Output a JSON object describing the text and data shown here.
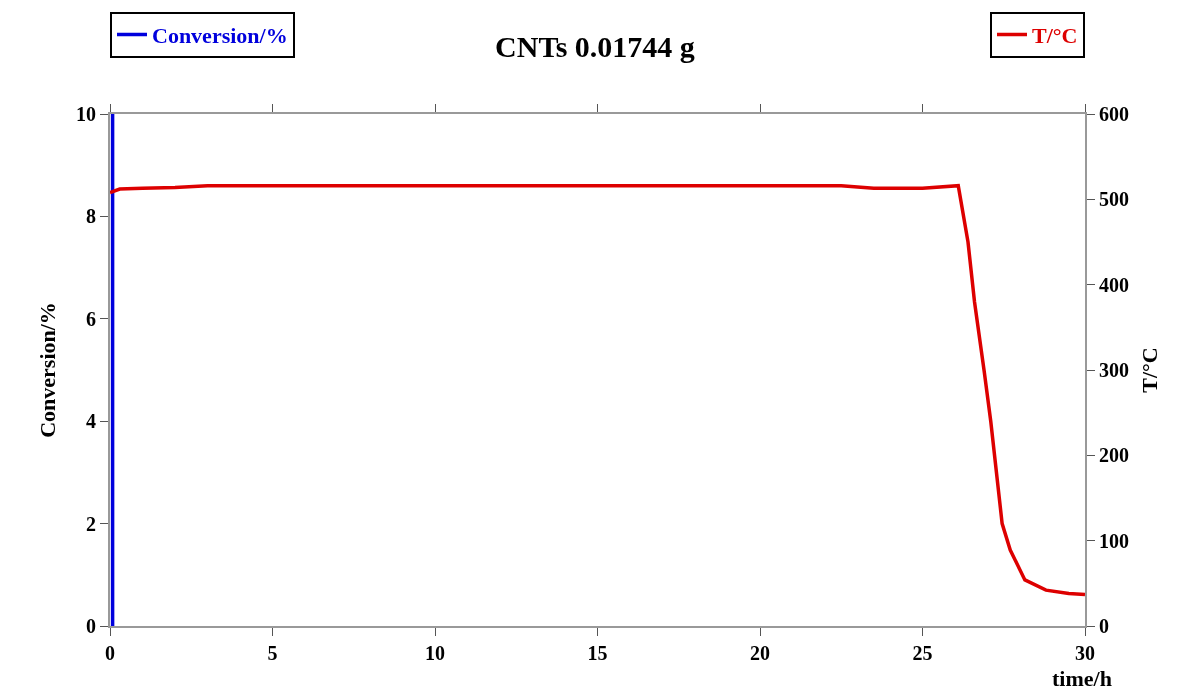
{
  "chart_data": {
    "type": "line",
    "title": "CNTs 0.01744 g",
    "xlabel": "time/h",
    "ylabel": "Conversion/%",
    "y2label": "T/°C",
    "xlim": [
      0,
      30
    ],
    "xticks": [
      0,
      5,
      10,
      15,
      20,
      25,
      30
    ],
    "ylim": [
      0,
      10
    ],
    "yticks": [
      0,
      2,
      4,
      6,
      8,
      10
    ],
    "y2lim": [
      0,
      600
    ],
    "y2ticks": [
      0,
      100,
      200,
      300,
      400,
      500,
      600
    ],
    "grid": false,
    "legend": "top",
    "marker": "none",
    "line_style": "solid",
    "series": [
      {
        "name": "Conversion/%",
        "color": "#0000dd",
        "x": [
          0.08,
          0.08
        ],
        "values": [
          0,
          10
        ]
      },
      {
        "name": "T/°C",
        "color": "#dd0000",
        "axis": "y2",
        "x": [
          0,
          0.3,
          1,
          2,
          3,
          5,
          10,
          15,
          20,
          22.5,
          23.5,
          25,
          26.1,
          26.4,
          26.6,
          26.9,
          27.1,
          27.45,
          27.7,
          28.15,
          28.8,
          29.5,
          30
        ],
        "values": [
          508,
          512,
          513,
          514,
          516,
          516,
          516,
          516,
          516,
          516,
          513,
          513,
          516,
          450,
          380,
          298,
          240,
          120,
          89,
          54,
          42,
          38,
          37
        ]
      }
    ]
  }
}
